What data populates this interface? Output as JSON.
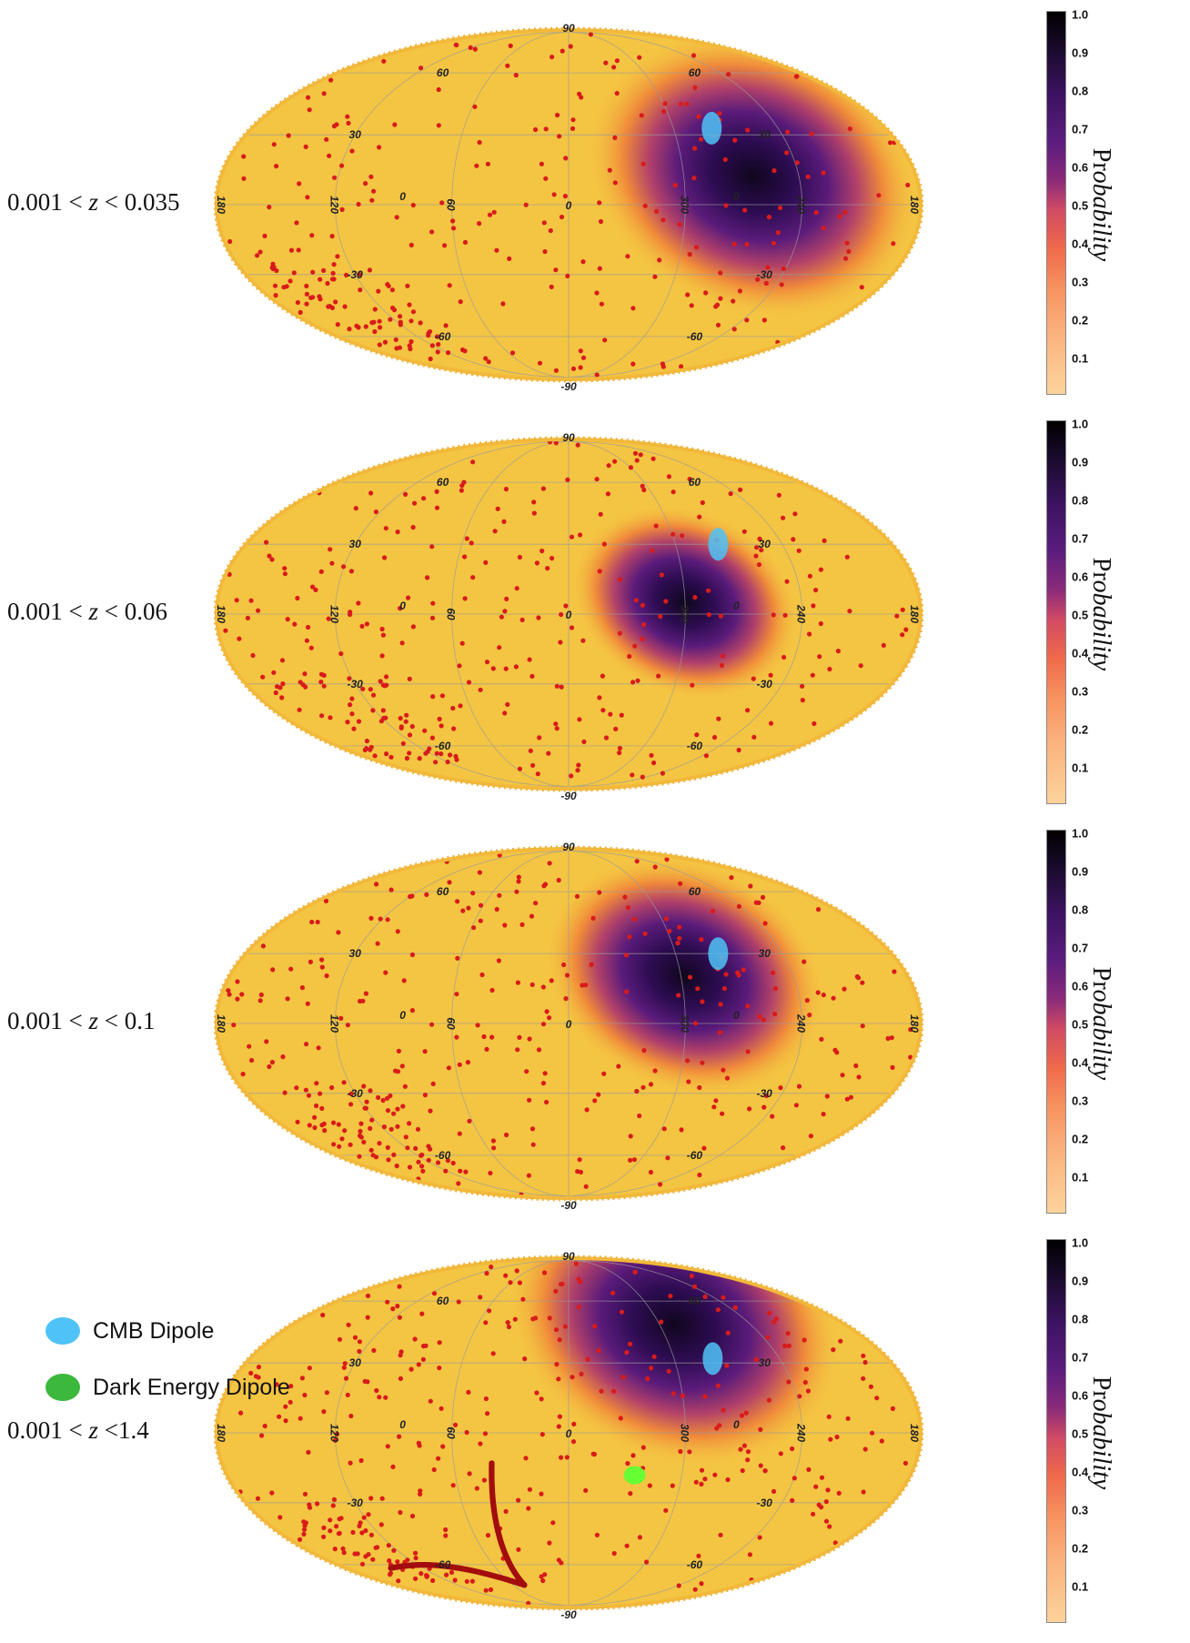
{
  "colorbar": {
    "title_upright": "Pr",
    "title_italic": "obability",
    "ticks": [
      "1.0",
      "0.9",
      "0.8",
      "0.7",
      "0.6",
      "0.5",
      "0.4",
      "0.3",
      "0.2",
      "0.1"
    ]
  },
  "chart_data": [
    {
      "type": "heatmap",
      "projection": "mollweide",
      "label": "0.001 < z < 0.035",
      "label_parts": {
        "lo": "0.001 <",
        "var": "z",
        "hi": "< 0.035"
      },
      "probability_peak": {
        "l": 264,
        "b": 12,
        "extent": 1.0
      },
      "cmb_dipole": {
        "l": 278,
        "b": 33
      },
      "lon_labels": [
        "180",
        "120",
        "60",
        "0",
        "300",
        "240",
        "180"
      ],
      "lat_labels": [
        "90",
        "60",
        "30",
        "0",
        "-30",
        "-60",
        "-90"
      ],
      "grid_lon_labels_extra": [
        "0"
      ],
      "colorbar_range": [
        0,
        1
      ]
    },
    {
      "type": "heatmap",
      "projection": "mollweide",
      "label": "0.001 < z < 0.06",
      "label_parts": {
        "lo": "0.001 <",
        "var": "z",
        "hi": "< 0.06"
      },
      "probability_peak": {
        "l": 300,
        "b": 5,
        "extent": 0.6
      },
      "cmb_dipole": {
        "l": 276,
        "b": 30
      },
      "lon_labels": [
        "180",
        "120",
        "60",
        "0",
        "300",
        "240",
        "180"
      ],
      "lat_labels": [
        "90",
        "60",
        "30",
        "0",
        "-30",
        "-60",
        "-90"
      ],
      "colorbar_range": [
        0,
        1
      ]
    },
    {
      "type": "heatmap",
      "projection": "mollweide",
      "label": "0.001 < z < 0.1",
      "label_parts": {
        "lo": "0.001 <",
        "var": "z",
        "hi": "< 0.1"
      },
      "probability_peak": {
        "l": 298,
        "b": 20,
        "extent": 0.8
      },
      "cmb_dipole": {
        "l": 276,
        "b": 30
      },
      "lon_labels": [
        "180",
        "120",
        "60",
        "0",
        "300",
        "240",
        "180"
      ],
      "lat_labels": [
        "90",
        "60",
        "30",
        "0",
        "-30",
        "-60",
        "-90"
      ],
      "colorbar_range": [
        0,
        1
      ]
    },
    {
      "type": "heatmap",
      "projection": "mollweide",
      "label": "0.001 < z <1.4",
      "label_parts": {
        "lo": "0.001 <",
        "var": "z",
        "hi": "<1.4"
      },
      "probability_peak": {
        "l": 290,
        "b": 48,
        "extent": 1.0
      },
      "cmb_dipole": {
        "l": 278,
        "b": 32
      },
      "dark_energy_dipole": {
        "l": 325,
        "b": -18
      },
      "lon_labels": [
        "180",
        "120",
        "60",
        "0",
        "300",
        "240",
        "180"
      ],
      "lat_labels": [
        "90",
        "60",
        "30",
        "0",
        "-30",
        "-60",
        "-90"
      ],
      "colorbar_range": [
        0,
        1
      ]
    }
  ],
  "legend": {
    "cmb": {
      "label": "CMB Dipole",
      "color": "#4fc3f7"
    },
    "dark": {
      "label": "Dark Energy Dipole",
      "color": "#3cb83c"
    }
  },
  "colors": {
    "background": "#f4c542",
    "point": "#d81b1b",
    "grid": "#9a9a9a"
  }
}
